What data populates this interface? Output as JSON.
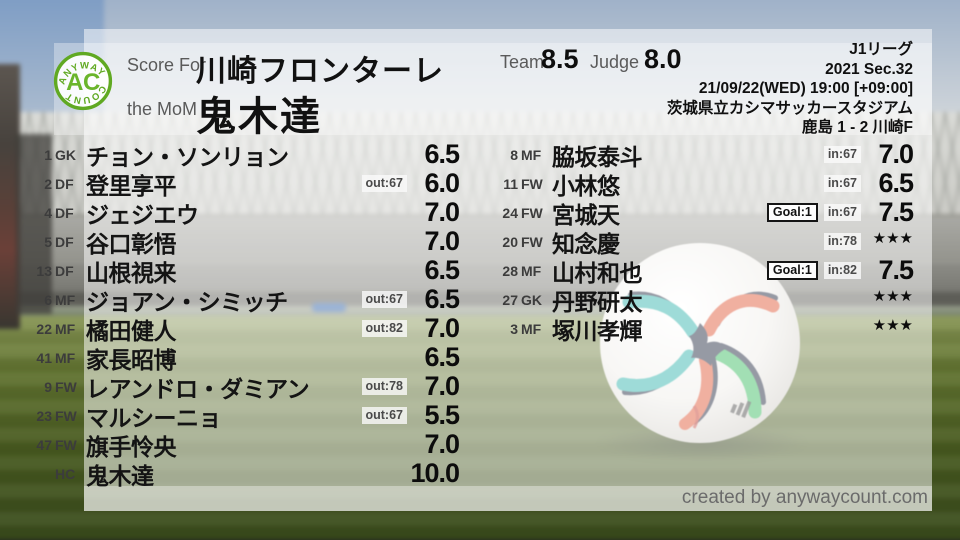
{
  "logo": {
    "monogram": "AC",
    "arc_top": "ANYWAY",
    "arc_bottom": "COUNT"
  },
  "header": {
    "score_for_label": "Score For",
    "team_name": "川崎フロンターレ",
    "mom_label": "the MoM",
    "mom_name": "鬼木達",
    "team_label": "Team",
    "team_score": "8.5",
    "judge_label": "Judge",
    "judge_score": "8.0",
    "match_info": [
      "J1リーグ",
      "2021 Sec.32",
      "21/09/22(WED) 19:00 [+09:00]",
      "茨城県立カシマサッカースタジアム",
      "鹿島 1 - 2 川崎F"
    ]
  },
  "players_left": [
    {
      "num": "1",
      "pos": "GK",
      "name": "チョン・ソンリョン",
      "goal": null,
      "sub": null,
      "rating": "6.5"
    },
    {
      "num": "2",
      "pos": "DF",
      "name": "登里享平",
      "goal": null,
      "sub": "out:67",
      "rating": "6.0"
    },
    {
      "num": "4",
      "pos": "DF",
      "name": "ジェジエウ",
      "goal": null,
      "sub": null,
      "rating": "7.0"
    },
    {
      "num": "5",
      "pos": "DF",
      "name": "谷口彰悟",
      "goal": null,
      "sub": null,
      "rating": "7.0"
    },
    {
      "num": "13",
      "pos": "DF",
      "name": "山根視来",
      "goal": null,
      "sub": null,
      "rating": "6.5"
    },
    {
      "num": "6",
      "pos": "MF",
      "name": "ジョアン・シミッチ",
      "goal": null,
      "sub": "out:67",
      "rating": "6.5"
    },
    {
      "num": "22",
      "pos": "MF",
      "name": "橘田健人",
      "goal": null,
      "sub": "out:82",
      "rating": "7.0"
    },
    {
      "num": "41",
      "pos": "MF",
      "name": "家長昭博",
      "goal": null,
      "sub": null,
      "rating": "6.5"
    },
    {
      "num": "9",
      "pos": "FW",
      "name": "レアンドロ・ダミアン",
      "goal": null,
      "sub": "out:78",
      "rating": "7.0"
    },
    {
      "num": "23",
      "pos": "FW",
      "name": "マルシーニョ",
      "goal": null,
      "sub": "out:67",
      "rating": "5.5"
    },
    {
      "num": "47",
      "pos": "FW",
      "name": "旗手怜央",
      "goal": null,
      "sub": null,
      "rating": "7.0"
    },
    {
      "num": "",
      "pos": "HC",
      "name": "鬼木達",
      "goal": null,
      "sub": null,
      "rating": "10.0"
    }
  ],
  "players_right": [
    {
      "num": "8",
      "pos": "MF",
      "name": "脇坂泰斗",
      "goal": null,
      "sub": "in:67",
      "rating": "7.0"
    },
    {
      "num": "11",
      "pos": "FW",
      "name": "小林悠",
      "goal": null,
      "sub": "in:67",
      "rating": "6.5"
    },
    {
      "num": "24",
      "pos": "FW",
      "name": "宮城天",
      "goal": "Goal:1",
      "sub": "in:67",
      "rating": "7.5"
    },
    {
      "num": "20",
      "pos": "FW",
      "name": "知念慶",
      "goal": null,
      "sub": "in:78",
      "rating": "★★★"
    },
    {
      "num": "28",
      "pos": "MF",
      "name": "山村和也",
      "goal": "Goal:1",
      "sub": "in:82",
      "rating": "7.5"
    },
    {
      "num": "27",
      "pos": "GK",
      "name": "丹野研太",
      "goal": null,
      "sub": null,
      "rating": "★★★"
    },
    {
      "num": "3",
      "pos": "MF",
      "name": "塚川孝輝",
      "goal": null,
      "sub": null,
      "rating": "★★★"
    }
  ],
  "footer": {
    "credit": "created by anywaycount.com"
  },
  "colors": {
    "accent_green": "#63ad24",
    "rating_text": "#0c0c0c",
    "sub_badge_bg": "#ebebeb",
    "sub_badge_text": "#4a4a4a",
    "goal_badge_border": "#151515",
    "credit_text": "#6b6b6b"
  }
}
